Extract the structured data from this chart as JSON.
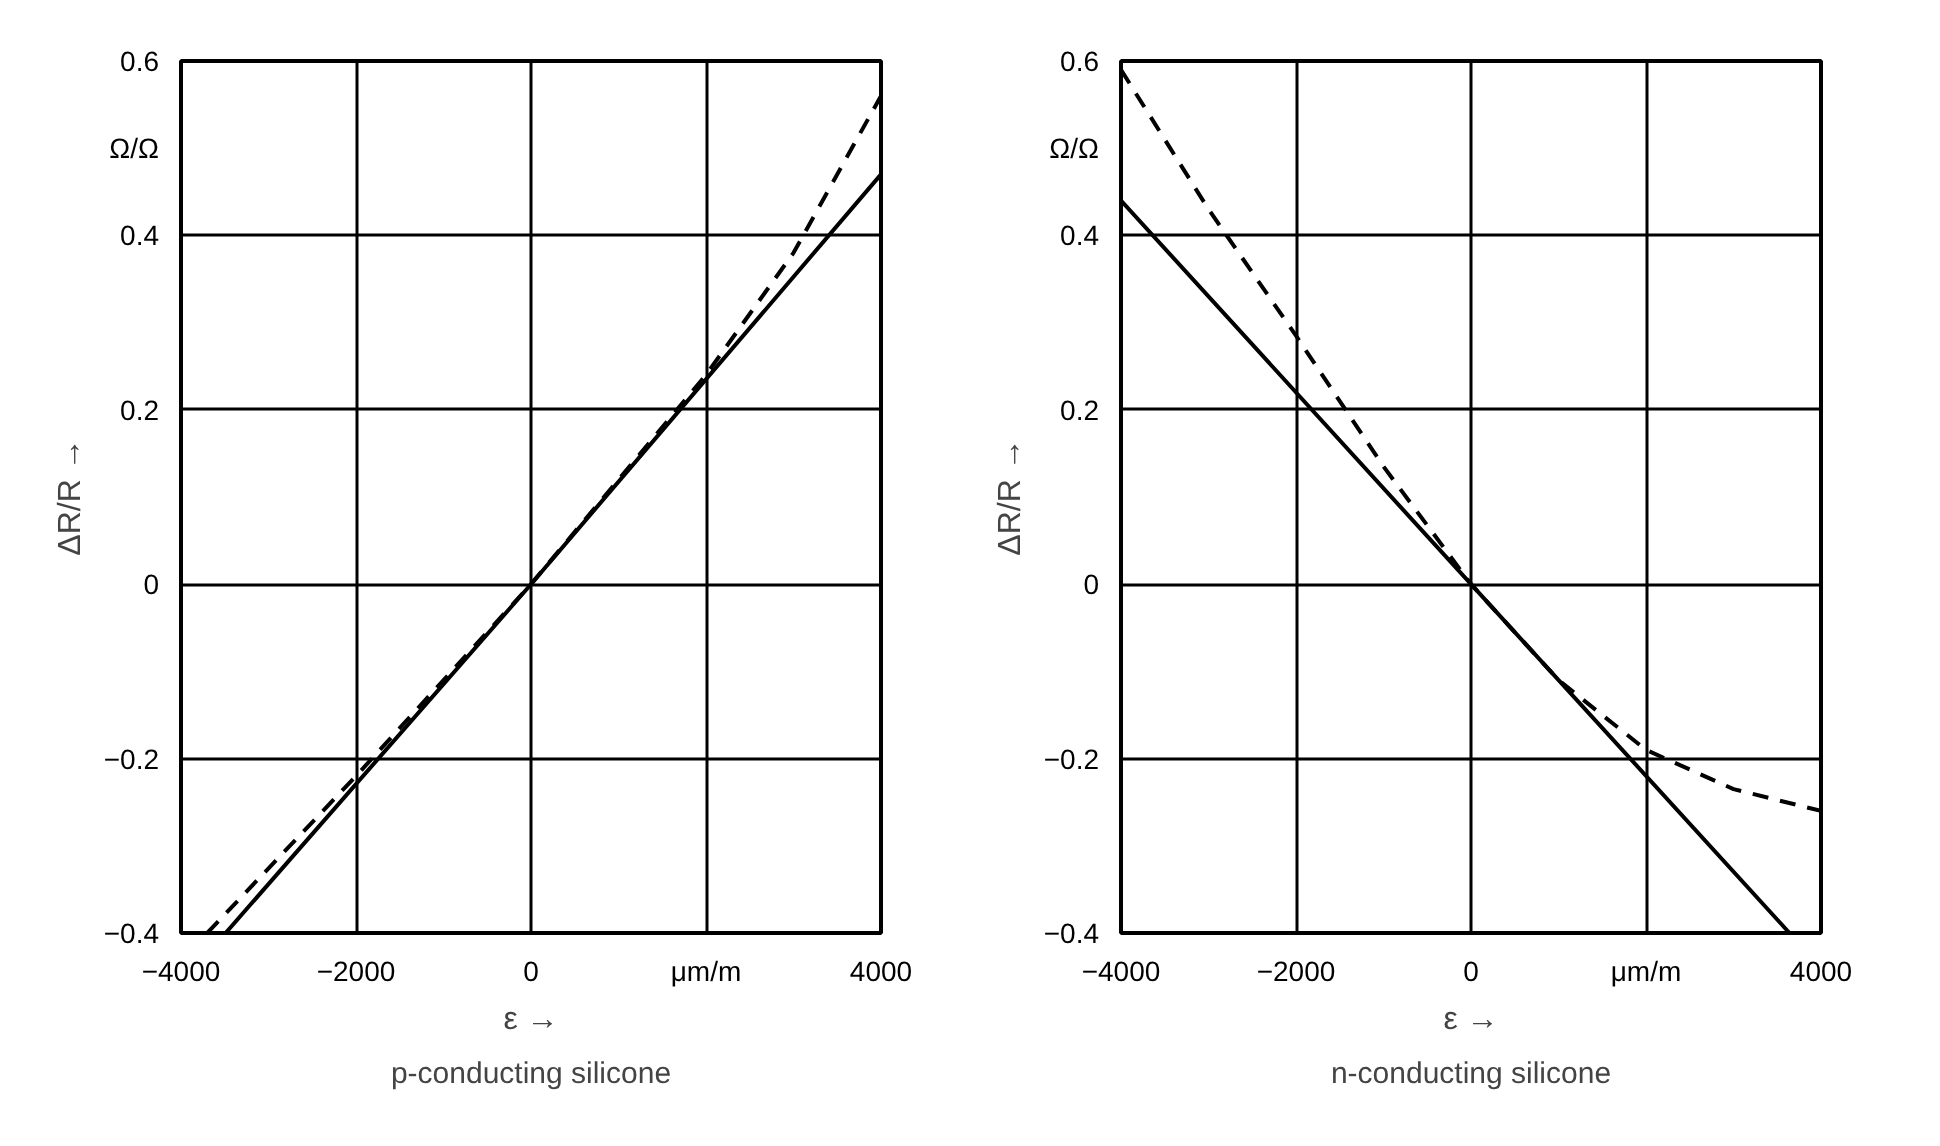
{
  "chart_data": [
    {
      "type": "line",
      "title": "p-conducting silicone",
      "xlabel": "ε →",
      "ylabel": "ΔR/R →",
      "annotations": [
        "Ω/Ω"
      ],
      "xlim": [
        -4000,
        4000
      ],
      "ylim": [
        -0.4,
        0.6
      ],
      "xticks": [
        -4000,
        -2000,
        0,
        {
          "value": 2000,
          "label": "μm/m"
        },
        4000
      ],
      "yticks": [
        -0.4,
        -0.2,
        0,
        0.2,
        0.4,
        0.6
      ],
      "grid": true,
      "series": [
        {
          "color": "#000000",
          "line_style": "solid",
          "x": [
            -3490,
            0,
            4000
          ],
          "values": [
            -0.4,
            0,
            0.47
          ]
        },
        {
          "color": "#000000",
          "line_style": "dashed",
          "x": [
            -3700,
            -2000,
            0,
            2000,
            3000,
            4000
          ],
          "values": [
            -0.4,
            -0.22,
            0,
            0.24,
            0.38,
            0.56
          ]
        }
      ]
    },
    {
      "type": "line",
      "title": "n-conducting silicone",
      "xlabel": "ε →",
      "ylabel": "ΔR/R →",
      "annotations": [
        "Ω/Ω"
      ],
      "xlim": [
        -4000,
        4000
      ],
      "ylim": [
        -0.4,
        0.6
      ],
      "xticks": [
        -4000,
        -2000,
        0,
        {
          "value": 2000,
          "label": "μm/m"
        },
        4000
      ],
      "yticks": [
        -0.4,
        -0.2,
        0,
        0.2,
        0.4,
        0.6
      ],
      "grid": true,
      "series": [
        {
          "color": "#000000",
          "line_style": "solid",
          "x": [
            -4000,
            0,
            3640
          ],
          "values": [
            0.44,
            0,
            -0.4
          ]
        },
        {
          "color": "#000000",
          "line_style": "dashed",
          "x": [
            -4000,
            -3000,
            -2000,
            -1000,
            0,
            1000,
            2000,
            3000,
            4000
          ],
          "values": [
            0.59,
            0.43,
            0.285,
            0.135,
            0,
            -0.11,
            -0.19,
            -0.235,
            -0.26
          ]
        }
      ]
    }
  ]
}
